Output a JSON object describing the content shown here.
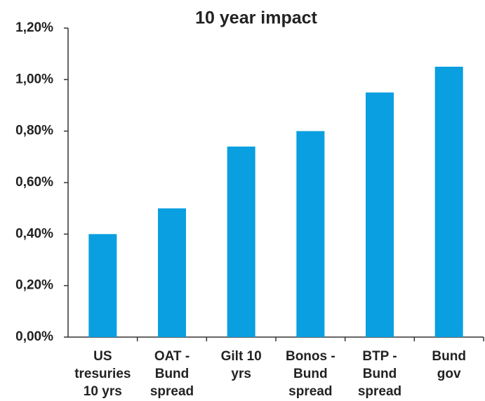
{
  "chart_data": {
    "type": "bar",
    "title": "10 year impact",
    "categories": [
      [
        "US",
        "tresuries",
        "10 yrs"
      ],
      [
        "OAT -",
        "Bund",
        "spread"
      ],
      [
        "Gilt 10",
        "yrs"
      ],
      [
        "Bonos -",
        "Bund",
        "spread"
      ],
      [
        "BTP -",
        "Bund",
        "spread"
      ],
      [
        "Bund",
        "gov"
      ]
    ],
    "values": [
      0.4,
      0.5,
      0.74,
      0.8,
      0.95,
      1.05
    ],
    "color": "#0a9fe0",
    "ylim": [
      0,
      1.2
    ],
    "yticks": [
      {
        "value": 0,
        "label": "0,00%"
      },
      {
        "value": 0.2,
        "label": "0,20%"
      },
      {
        "value": 0.4,
        "label": "0,40%"
      },
      {
        "value": 0.6,
        "label": "0,60%"
      },
      {
        "value": 0.8,
        "label": "0,80%"
      },
      {
        "value": 1.0,
        "label": "1,00%"
      },
      {
        "value": 1.2,
        "label": "1,20%"
      }
    ],
    "grid": false
  }
}
